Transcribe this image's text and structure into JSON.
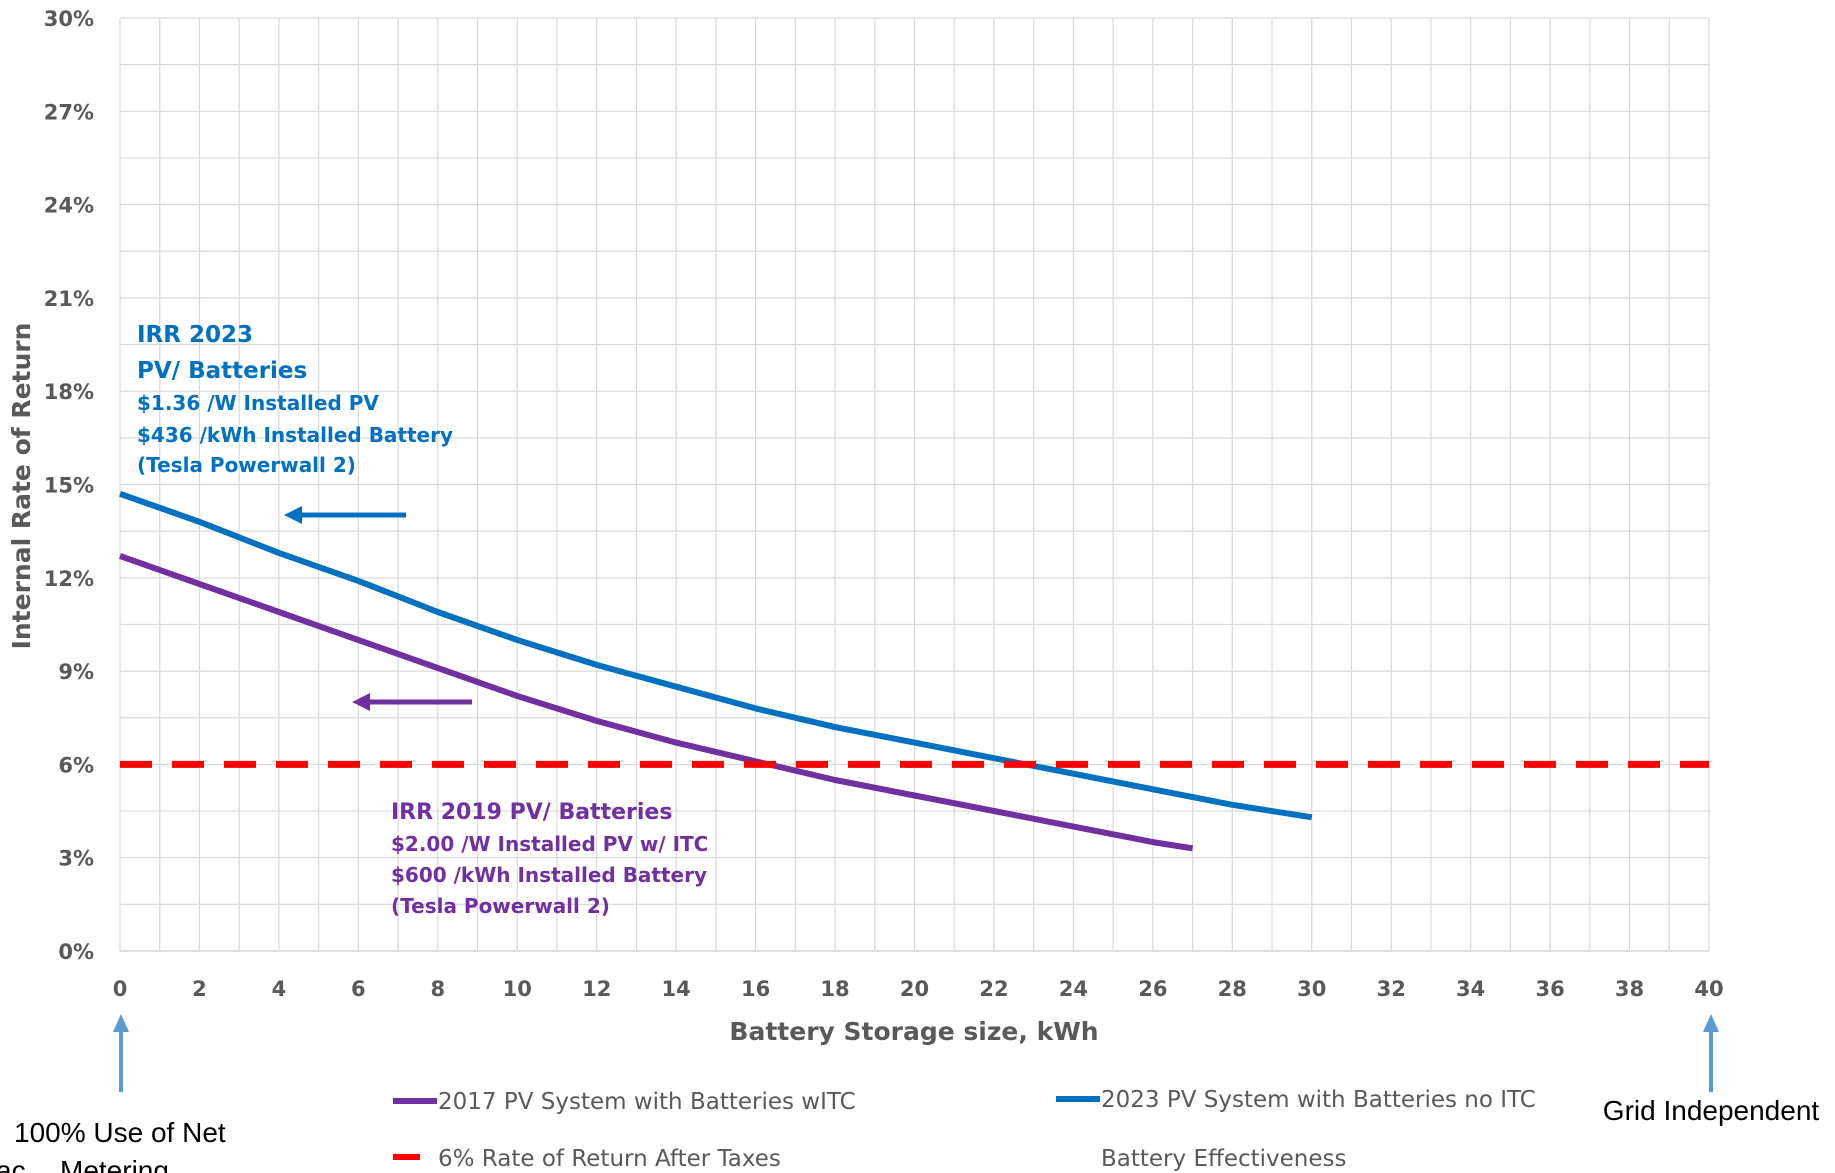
{
  "chart_data": {
    "type": "line",
    "title": "",
    "xlabel": "Battery Storage size, kWh",
    "ylabel": "Internal Rate of Return",
    "xlim": [
      0,
      40
    ],
    "ylim": [
      0,
      30
    ],
    "x_ticks": [
      "0",
      "2",
      "4",
      "6",
      "8",
      "10",
      "12",
      "14",
      "16",
      "18",
      "20",
      "22",
      "24",
      "26",
      "28",
      "30",
      "32",
      "34",
      "36",
      "38",
      "40"
    ],
    "y_ticks": [
      "0%",
      "3%",
      "6%",
      "9%",
      "12%",
      "15%",
      "18%",
      "21%",
      "24%",
      "27%",
      "30%"
    ],
    "grid": true,
    "series": [
      {
        "name": "2017 PV System with Batteries wITC",
        "color": "#7030A0",
        "x": [
          0,
          2,
          4,
          6,
          8,
          10,
          12,
          14,
          16,
          18,
          20,
          22,
          24,
          26,
          27
        ],
        "y": [
          12.7,
          11.8,
          10.9,
          10.0,
          9.1,
          8.2,
          7.4,
          6.7,
          6.1,
          5.5,
          5.0,
          4.5,
          4.0,
          3.5,
          3.3
        ]
      },
      {
        "name": "2023 PV System with Batteries no ITC",
        "color": "#0070C0",
        "x": [
          0,
          2,
          4,
          6,
          8,
          10,
          12,
          14,
          16,
          18,
          20,
          22,
          24,
          26,
          28,
          30
        ],
        "y": [
          14.7,
          13.8,
          12.8,
          11.9,
          10.9,
          10.0,
          9.2,
          8.5,
          7.8,
          7.2,
          6.7,
          6.2,
          5.7,
          5.2,
          4.7,
          4.3
        ]
      },
      {
        "name": "6% Rate of Return After Taxes",
        "color": "#FF0000",
        "style": "dashed",
        "x": [
          0,
          40
        ],
        "y": [
          6,
          6
        ]
      }
    ],
    "legend_extra": "Battery Effectiveness",
    "annotations": {
      "irr2023": {
        "color": "#0070C0",
        "lines": [
          "IRR 2023",
          "PV/ Batteries",
          "$1.36 /W Installed PV",
          "$436 /kWh Installed Battery",
          "(Tesla Powerwall 2)"
        ]
      },
      "irr2019": {
        "color": "#7030A0",
        "lines": [
          "IRR 2019 PV/ Batteries",
          "$2.00 /W Installed PV w/ ITC",
          "$600 /kWh Installed Battery",
          "(Tesla Powerwall 2)"
        ]
      },
      "left_note": [
        "100% Use of Net",
        "Metering"
      ],
      "left_note_prefix": "ac",
      "right_note": "Grid Independent"
    },
    "legend_position": "bottom"
  }
}
